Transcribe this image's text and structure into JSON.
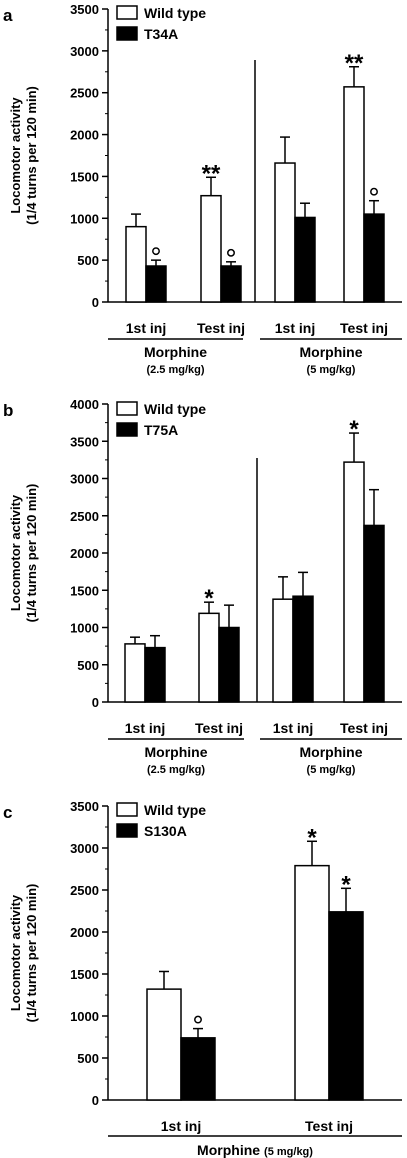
{
  "chart_data": [
    {
      "type": "bar",
      "panel_label": "a",
      "ylabel_lines": [
        "Locomotor activity",
        "(1/4 turns per 120 min)"
      ],
      "ylim": [
        0,
        3500
      ],
      "yticks": [
        0,
        500,
        1000,
        1500,
        2000,
        2500,
        3000,
        3500
      ],
      "categories": [
        "1st inj",
        "Test inj",
        "1st inj",
        "Test inj"
      ],
      "series": [
        {
          "name": "Wild type",
          "color": "#ffffff",
          "values": [
            900,
            1270,
            1660,
            2570
          ],
          "errors": [
            150,
            220,
            310,
            240
          ]
        },
        {
          "name": "T34A",
          "color": "#000000",
          "values": [
            430,
            430,
            1010,
            1050
          ],
          "errors": [
            70,
            50,
            170,
            160
          ]
        }
      ],
      "annotations": [
        {
          "category": 0,
          "series": 1,
          "text": "°"
        },
        {
          "category": 1,
          "series": 0,
          "text": "**"
        },
        {
          "category": 1,
          "series": 1,
          "text": "°"
        },
        {
          "category": 3,
          "series": 0,
          "text": "**"
        },
        {
          "category": 3,
          "series": 1,
          "text": "°"
        }
      ],
      "groups": [
        {
          "label": "Morphine",
          "sublabel": "(2.5 mg/kg)",
          "categories": [
            0,
            1
          ]
        },
        {
          "label": "Morphine",
          "sublabel": "(5 mg/kg)",
          "categories": [
            2,
            3
          ]
        }
      ],
      "separator_after_category": 1,
      "legend_position": "top-left"
    },
    {
      "type": "bar",
      "panel_label": "b",
      "ylabel_lines": [
        "Locomotor activity",
        "(1/4 turns per 120 min)"
      ],
      "ylim": [
        0,
        4000
      ],
      "yticks": [
        0,
        500,
        1000,
        1500,
        2000,
        2500,
        3000,
        3500,
        4000
      ],
      "categories": [
        "1st inj",
        "Test inj",
        "1st inj",
        "Test inj"
      ],
      "series": [
        {
          "name": "Wild type",
          "color": "#ffffff",
          "values": [
            780,
            1190,
            1380,
            3220
          ],
          "errors": [
            90,
            150,
            300,
            390
          ]
        },
        {
          "name": "T75A",
          "color": "#000000",
          "values": [
            730,
            1000,
            1420,
            2370
          ],
          "errors": [
            160,
            300,
            320,
            480
          ]
        }
      ],
      "annotations": [
        {
          "category": 1,
          "series": 0,
          "text": "*"
        },
        {
          "category": 3,
          "series": 0,
          "text": "*"
        }
      ],
      "groups": [
        {
          "label": "Morphine",
          "sublabel": "(2.5 mg/kg)",
          "categories": [
            0,
            1
          ]
        },
        {
          "label": "Morphine",
          "sublabel": "(5 mg/kg)",
          "categories": [
            2,
            3
          ]
        }
      ],
      "separator_after_category": 1,
      "legend_position": "top-left"
    },
    {
      "type": "bar",
      "panel_label": "c",
      "ylabel_lines": [
        "Locomotor activity",
        "(1/4 turns per 120 min)"
      ],
      "ylim": [
        0,
        3500
      ],
      "yticks": [
        0,
        500,
        1000,
        1500,
        2000,
        2500,
        3000,
        3500
      ],
      "categories": [
        "1st inj",
        "Test inj"
      ],
      "series": [
        {
          "name": "Wild type",
          "color": "#ffffff",
          "values": [
            1320,
            2790
          ],
          "errors": [
            210,
            290
          ]
        },
        {
          "name": "S130A",
          "color": "#000000",
          "values": [
            740,
            2240
          ],
          "errors": [
            110,
            280
          ]
        }
      ],
      "annotations": [
        {
          "category": 0,
          "series": 1,
          "text": "°"
        },
        {
          "category": 1,
          "series": 0,
          "text": "*"
        },
        {
          "category": 1,
          "series": 1,
          "text": "*"
        }
      ],
      "groups": [
        {
          "label": "Morphine",
          "sublabel": "(5 mg/kg)",
          "categories": [
            0,
            1
          ],
          "inline": true
        }
      ],
      "separator_after_category": null,
      "legend_position": "top-left"
    }
  ]
}
